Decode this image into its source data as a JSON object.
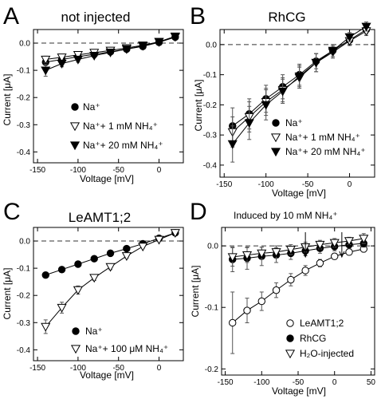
{
  "figure": {
    "panels": [
      {
        "letter": "A",
        "title": "not injected",
        "annotation": "",
        "xlabel": "Voltage [mV]",
        "ylabel": "Current [μA]",
        "legend_position": "bottom-left",
        "x_ticks": [
          {
            "v": -150,
            "label": "-150"
          },
          {
            "v": -100,
            "label": "-100"
          },
          {
            "v": -50,
            "label": "-50"
          },
          {
            "v": 0,
            "label": "0"
          }
        ],
        "y_ticks": [
          {
            "v": 0,
            "label": "0.0"
          },
          {
            "v": -0.1,
            "label": "-0.1"
          },
          {
            "v": -0.2,
            "label": "-0.2"
          },
          {
            "v": -0.3,
            "label": "-0.3"
          },
          {
            "v": -0.4,
            "label": "-0.4"
          }
        ],
        "legend": [
          {
            "marker": "filled-circle",
            "text": "Na⁺"
          },
          {
            "marker": "open-triangle-down",
            "text": "Na⁺+ 1 mM NH₄⁺"
          },
          {
            "marker": "filled-triangle-down",
            "text": "Na⁺+ 20 mM NH₄⁺"
          }
        ]
      },
      {
        "letter": "B",
        "title": "RhCG",
        "annotation": "",
        "xlabel": "Voltage [mV]",
        "ylabel": "Current [μA]",
        "legend_position": "bottom-right",
        "x_ticks": [
          {
            "v": -150,
            "label": "-150"
          },
          {
            "v": -100,
            "label": "-100"
          },
          {
            "v": -50,
            "label": "-50"
          },
          {
            "v": 0,
            "label": "0"
          }
        ],
        "y_ticks": [
          {
            "v": 0,
            "label": "0.0"
          },
          {
            "v": -0.1,
            "label": "-0.1"
          },
          {
            "v": -0.2,
            "label": "-0.2"
          },
          {
            "v": -0.3,
            "label": "-0.3"
          },
          {
            "v": -0.4,
            "label": "-0.4"
          }
        ],
        "legend": [
          {
            "marker": "filled-circle",
            "text": "Na⁺"
          },
          {
            "marker": "open-triangle-down",
            "text": "Na⁺+ 1 mM NH₄⁺"
          },
          {
            "marker": "filled-triangle-down",
            "text": "Na⁺+ 20 mM NH₄⁺"
          }
        ]
      },
      {
        "letter": "C",
        "title": "LeAMT1;2",
        "annotation": "",
        "xlabel": "Voltage [mV]",
        "ylabel": "Current [μA]",
        "legend_position": "bottom-right",
        "x_ticks": [
          {
            "v": -150,
            "label": "-150"
          },
          {
            "v": -100,
            "label": "-100"
          },
          {
            "v": -50,
            "label": "-50"
          },
          {
            "v": 0,
            "label": "0"
          }
        ],
        "y_ticks": [
          {
            "v": 0,
            "label": "0.0"
          },
          {
            "v": -0.1,
            "label": "-0.1"
          },
          {
            "v": -0.2,
            "label": "-0.2"
          },
          {
            "v": -0.3,
            "label": "-0.3"
          },
          {
            "v": -0.4,
            "label": "-0.4"
          }
        ],
        "legend": [
          {
            "marker": "filled-circle",
            "text": "Na⁺"
          },
          {
            "marker": "open-triangle-down",
            "text": "Na⁺+ 100 μM NH₄⁺"
          }
        ]
      },
      {
        "letter": "D",
        "title": "",
        "annotation": "Induced by 10 mM NH₄⁺",
        "xlabel": "Voltage [mV]",
        "ylabel": "Current [μA]",
        "legend_position": "bottom-right",
        "x_ticks": [
          {
            "v": -150,
            "label": "-150"
          },
          {
            "v": -100,
            "label": "-100"
          },
          {
            "v": -50,
            "label": "-50"
          },
          {
            "v": 0,
            "label": "0"
          },
          {
            "v": 50,
            "label": "50"
          }
        ],
        "y_ticks": [
          {
            "v": 0,
            "label": "0.0"
          },
          {
            "v": -0.1,
            "label": "-0.1"
          },
          {
            "v": -0.2,
            "label": "-0.2"
          }
        ],
        "legend": [
          {
            "marker": "open-circle",
            "text": "LeAMT1;2"
          },
          {
            "marker": "filled-circle",
            "text": "RhCG"
          },
          {
            "marker": "open-triangle-down",
            "text": "H₂O-injected"
          }
        ]
      }
    ]
  },
  "chart_data": [
    {
      "type": "line",
      "title": "not injected",
      "xlabel": "Voltage [mV]",
      "ylabel": "Current [μA]",
      "xlim": [
        -155,
        30
      ],
      "ylim": [
        -0.44,
        0.05
      ],
      "grid": false,
      "reference_line_y": 0,
      "series": [
        {
          "name": "Na⁺",
          "marker": "filled-circle",
          "x": [
            -140,
            -120,
            -100,
            -80,
            -60,
            -40,
            -20,
            0,
            20
          ],
          "y": [
            -0.07,
            -0.06,
            -0.05,
            -0.041,
            -0.032,
            -0.022,
            -0.012,
            0.003,
            0.022
          ],
          "err": [
            0.01,
            0.008,
            0.006,
            0.005,
            0.004,
            0.004,
            0.004,
            0.004,
            0.005
          ]
        },
        {
          "name": "Na⁺+ 1 mM NH₄⁺",
          "marker": "open-triangle-down",
          "x": [
            -140,
            -120,
            -100,
            -80,
            -60,
            -40,
            -20,
            0,
            20
          ],
          "y": [
            -0.06,
            -0.052,
            -0.043,
            -0.035,
            -0.027,
            -0.018,
            -0.008,
            0.005,
            0.025
          ],
          "err": [
            0.012,
            0.01,
            0.008,
            0.006,
            0.005,
            0.005,
            0.004,
            0.004,
            0.005
          ]
        },
        {
          "name": "Na⁺+ 20 mM NH₄⁺",
          "marker": "filled-triangle-down",
          "x": [
            -140,
            -120,
            -100,
            -80,
            -60,
            -40,
            -20,
            0,
            20
          ],
          "y": [
            -0.1,
            -0.075,
            -0.06,
            -0.046,
            -0.034,
            -0.022,
            -0.01,
            0.005,
            0.023
          ],
          "err": [
            0.022,
            0.012,
            0.01,
            0.008,
            0.006,
            0.005,
            0.004,
            0.004,
            0.005
          ]
        }
      ]
    },
    {
      "type": "line",
      "title": "RhCG",
      "xlabel": "Voltage [mV]",
      "ylabel": "Current [μA]",
      "xlim": [
        -155,
        30
      ],
      "ylim": [
        -0.44,
        0.05
      ],
      "grid": false,
      "reference_line_y": 0,
      "series": [
        {
          "name": "Na⁺",
          "marker": "filled-circle",
          "x": [
            -140,
            -120,
            -100,
            -80,
            -60,
            -40,
            -20,
            0,
            20
          ],
          "y": [
            -0.27,
            -0.23,
            -0.18,
            -0.14,
            -0.1,
            -0.055,
            -0.02,
            0.015,
            0.05
          ],
          "err": [
            0.06,
            0.05,
            0.045,
            0.04,
            0.035,
            0.025,
            0.02,
            0.015,
            0.015
          ]
        },
        {
          "name": "Na⁺+ 1 mM NH₄⁺",
          "marker": "open-triangle-down",
          "x": [
            -140,
            -120,
            -100,
            -80,
            -60,
            -40,
            -20,
            0,
            20
          ],
          "y": [
            -0.29,
            -0.24,
            -0.19,
            -0.15,
            -0.11,
            -0.06,
            -0.025,
            0.012,
            0.045
          ],
          "err": [
            0.05,
            0.05,
            0.045,
            0.04,
            0.035,
            0.03,
            0.02,
            0.015,
            0.015
          ]
        },
        {
          "name": "Na⁺+ 20 mM NH₄⁺",
          "marker": "filled-triangle-down",
          "x": [
            -140,
            -120,
            -100,
            -80,
            -60,
            -40,
            -20,
            0,
            20
          ],
          "y": [
            -0.33,
            -0.26,
            -0.2,
            -0.155,
            -0.105,
            -0.06,
            -0.02,
            0.025,
            0.06
          ],
          "err": [
            0.06,
            0.055,
            0.05,
            0.04,
            0.035,
            0.03,
            0.02,
            0.015,
            0.015
          ]
        }
      ]
    },
    {
      "type": "line",
      "title": "LeAMT1;2",
      "xlabel": "Voltage [mV]",
      "ylabel": "Current [μA]",
      "xlim": [
        -155,
        30
      ],
      "ylim": [
        -0.44,
        0.05
      ],
      "grid": false,
      "reference_line_y": 0,
      "series": [
        {
          "name": "Na⁺",
          "marker": "filled-circle",
          "x": [
            -140,
            -120,
            -100,
            -80,
            -60,
            -40,
            -20,
            0,
            20
          ],
          "y": [
            -0.125,
            -0.105,
            -0.085,
            -0.065,
            -0.045,
            -0.028,
            -0.01,
            0.01,
            0.03
          ],
          "err": [
            0.01,
            0.008,
            0.008,
            0.006,
            0.006,
            0.005,
            0.005,
            0.005,
            0.005
          ]
        },
        {
          "name": "Na⁺+ 100 μM NH₄⁺",
          "marker": "open-triangle-down",
          "x": [
            -140,
            -120,
            -100,
            -80,
            -60,
            -40,
            -20,
            0,
            20
          ],
          "y": [
            -0.315,
            -0.245,
            -0.18,
            -0.135,
            -0.095,
            -0.055,
            -0.02,
            0.005,
            0.03
          ],
          "err": [
            0.025,
            0.02,
            0.015,
            0.01,
            0.01,
            0.008,
            0.006,
            0.005,
            0.005
          ]
        }
      ]
    },
    {
      "type": "line",
      "title": "",
      "xlabel": "Voltage [mV]",
      "ylabel": "Current [μA]",
      "annotation": "Induced by 10 mM NH₄⁺",
      "xlim": [
        -155,
        55
      ],
      "ylim": [
        -0.21,
        0.03
      ],
      "grid": false,
      "reference_line_y": 0,
      "arrows_at_x": [
        -40,
        10
      ],
      "series": [
        {
          "name": "LeAMT1;2",
          "marker": "open-circle",
          "x": [
            -140,
            -120,
            -100,
            -80,
            -60,
            -40,
            -20,
            0,
            20,
            40
          ],
          "y": [
            -0.125,
            -0.105,
            -0.09,
            -0.072,
            -0.055,
            -0.04,
            -0.028,
            -0.017,
            -0.01,
            -0.005
          ],
          "err": [
            0.05,
            0.02,
            0.015,
            0.012,
            0.01,
            0.008,
            0.006,
            0.005,
            0.005,
            0.005
          ]
        },
        {
          "name": "RhCG",
          "marker": "filled-circle",
          "x": [
            -140,
            -120,
            -100,
            -80,
            -60,
            -40,
            -20,
            0,
            20,
            40
          ],
          "y": [
            -0.022,
            -0.02,
            -0.017,
            -0.015,
            -0.012,
            -0.008,
            -0.004,
            -0.001,
            0.002,
            0.004
          ],
          "err": [
            0.02,
            0.018,
            0.015,
            0.012,
            0.01,
            0.008,
            0.008,
            0.007,
            0.006,
            0.006
          ]
        },
        {
          "name": "H₂O-injected",
          "marker": "open-triangle-down",
          "x": [
            -140,
            -120,
            -100,
            -80,
            -60,
            -40,
            -20,
            0,
            20,
            40
          ],
          "y": [
            -0.018,
            -0.015,
            -0.012,
            -0.01,
            -0.006,
            -0.002,
            0.002,
            0.005,
            0.008,
            0.012
          ],
          "err": [
            0.015,
            0.012,
            0.01,
            0.01,
            0.008,
            0.008,
            0.007,
            0.007,
            0.006,
            0.008
          ]
        }
      ]
    }
  ]
}
